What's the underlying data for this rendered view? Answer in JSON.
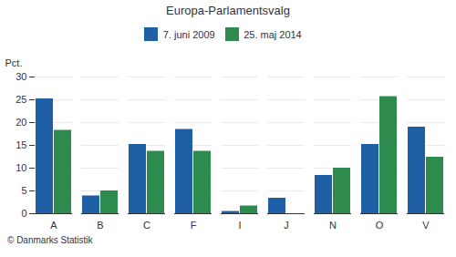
{
  "chart_data": {
    "type": "bar",
    "title": "Europa-Parlamentsvalg",
    "categories": [
      "A",
      "B",
      "C",
      "F",
      "I",
      "J",
      "N",
      "O",
      "V"
    ],
    "series": [
      {
        "name": "7. juni 2009",
        "color": "#1f5fa6",
        "values": [
          25.2,
          3.9,
          15.2,
          18.5,
          0.5,
          3.4,
          8.4,
          15.2,
          19.0
        ]
      },
      {
        "name": "25. maj 2014",
        "color": "#2e8b4e",
        "values": [
          18.3,
          5.0,
          13.7,
          13.7,
          1.7,
          0.0,
          10.0,
          25.7,
          12.4
        ]
      }
    ],
    "ylabel": "Pct.",
    "caption": "© Danmarks Statistik",
    "ylim": [
      0,
      30
    ],
    "yticks": [
      0,
      5,
      10,
      15,
      20,
      25,
      30
    ],
    "grid": true,
    "legend": "top"
  }
}
